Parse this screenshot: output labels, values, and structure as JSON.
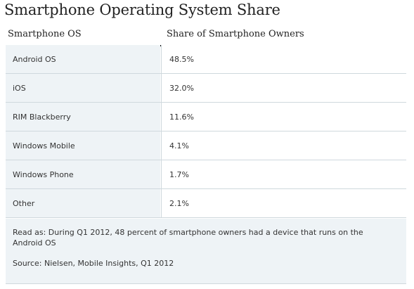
{
  "title": "Smartphone Operating System Share",
  "chart_data": {
    "type": "table",
    "columns": [
      "Smartphone OS",
      "Share of Smartphone Owners"
    ],
    "rows": [
      {
        "os": "Android OS",
        "share": "48.5%"
      },
      {
        "os": "iOS",
        "share": "32.0%"
      },
      {
        "os": "RIM Blackberry",
        "share": "11.6%"
      },
      {
        "os": "Windows Mobile",
        "share": "4.1%"
      },
      {
        "os": "Windows Phone",
        "share": "1.7%"
      },
      {
        "os": "Other",
        "share": "2.1%"
      }
    ]
  },
  "footer": {
    "note": "Read as: During Q1 2012, 48 percent  of smartphone owners had a device that runs on the Android OS",
    "source": "Source: Nielsen, Mobile Insights, Q1 2012"
  },
  "colors": {
    "label_column_bg": "#eef3f6",
    "value_column_bg": "#ffffff",
    "header_rule": "#111111",
    "row_rule": "#cfd8dd"
  }
}
